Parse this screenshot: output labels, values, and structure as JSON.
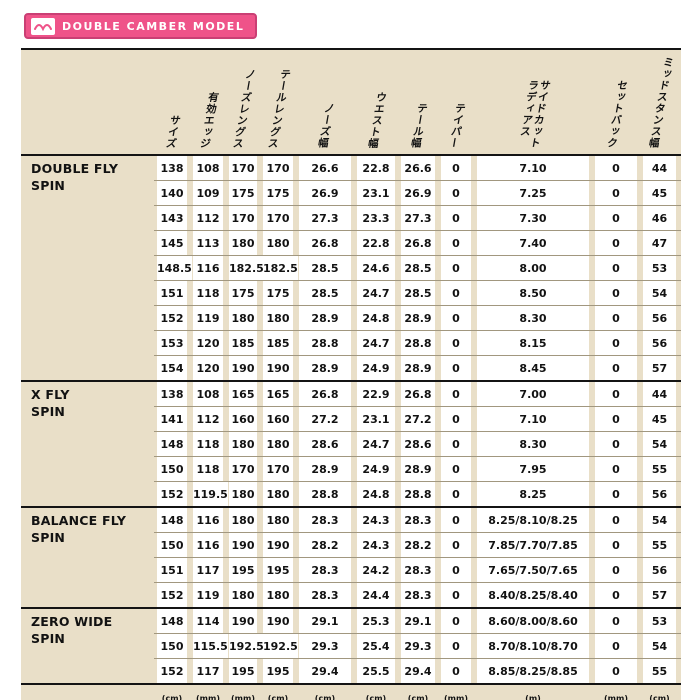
{
  "banner": {
    "title": "DOUBLE CAMBER MODEL"
  },
  "colors": {
    "accent_pink": "#ef5389",
    "accent_pink_dark": "#ca3f74",
    "table_beige": "#e9dfc8",
    "row_line": "#a1977f",
    "text": "#121212"
  },
  "icons": {
    "banner_icon": "double-camber-wave-icon"
  },
  "table": {
    "headers": [
      "サイズ",
      "有効エッジ",
      "ノーズレングス",
      "テールレングス",
      "ノーズ幅",
      "ウエスト幅",
      "テール幅",
      "テイパー",
      "サイドカット\nラディアス",
      "セットバック",
      "ミッドスタンス幅"
    ],
    "units": [
      "(cm)",
      "(mm)",
      "(mm)",
      "(cm)",
      "(cm)",
      "(cm)",
      "(cm)",
      "(mm)",
      "(m)",
      "(mm)",
      "(cm)"
    ],
    "groups": [
      {
        "model": "DOUBLE FLY\nSPIN",
        "rows": [
          [
            "138",
            "108",
            "170",
            "170",
            "26.6",
            "22.8",
            "26.6",
            "0",
            "7.10",
            "0",
            "44"
          ],
          [
            "140",
            "109",
            "175",
            "175",
            "26.9",
            "23.1",
            "26.9",
            "0",
            "7.25",
            "0",
            "45"
          ],
          [
            "143",
            "112",
            "170",
            "170",
            "27.3",
            "23.3",
            "27.3",
            "0",
            "7.30",
            "0",
            "46"
          ],
          [
            "145",
            "113",
            "180",
            "180",
            "26.8",
            "22.8",
            "26.8",
            "0",
            "7.40",
            "0",
            "47"
          ],
          [
            "148.5",
            "116",
            "182.5",
            "182.5",
            "28.5",
            "24.6",
            "28.5",
            "0",
            "8.00",
            "0",
            "53"
          ],
          [
            "151",
            "118",
            "175",
            "175",
            "28.5",
            "24.7",
            "28.5",
            "0",
            "8.50",
            "0",
            "54"
          ],
          [
            "152",
            "119",
            "180",
            "180",
            "28.9",
            "24.8",
            "28.9",
            "0",
            "8.30",
            "0",
            "56"
          ],
          [
            "153",
            "120",
            "185",
            "185",
            "28.8",
            "24.7",
            "28.8",
            "0",
            "8.15",
            "0",
            "56"
          ],
          [
            "154",
            "120",
            "190",
            "190",
            "28.9",
            "24.9",
            "28.9",
            "0",
            "8.45",
            "0",
            "57"
          ]
        ]
      },
      {
        "model": "X FLY\nSPIN",
        "rows": [
          [
            "138",
            "108",
            "165",
            "165",
            "26.8",
            "22.9",
            "26.8",
            "0",
            "7.00",
            "0",
            "44"
          ],
          [
            "141",
            "112",
            "160",
            "160",
            "27.2",
            "23.1",
            "27.2",
            "0",
            "7.10",
            "0",
            "45"
          ],
          [
            "148",
            "118",
            "180",
            "180",
            "28.6",
            "24.7",
            "28.6",
            "0",
            "8.30",
            "0",
            "54"
          ],
          [
            "150",
            "118",
            "170",
            "170",
            "28.9",
            "24.9",
            "28.9",
            "0",
            "7.95",
            "0",
            "55"
          ],
          [
            "152",
            "119.5",
            "180",
            "180",
            "28.8",
            "24.8",
            "28.8",
            "0",
            "8.25",
            "0",
            "56"
          ]
        ]
      },
      {
        "model": "BALANCE FLY\nSPIN",
        "rows": [
          [
            "148",
            "116",
            "180",
            "180",
            "28.3",
            "24.3",
            "28.3",
            "0",
            "8.25/8.10/8.25",
            "0",
            "54"
          ],
          [
            "150",
            "116",
            "190",
            "190",
            "28.2",
            "24.3",
            "28.2",
            "0",
            "7.85/7.70/7.85",
            "0",
            "55"
          ],
          [
            "151",
            "117",
            "195",
            "195",
            "28.3",
            "24.2",
            "28.3",
            "0",
            "7.65/7.50/7.65",
            "0",
            "56"
          ],
          [
            "152",
            "119",
            "180",
            "180",
            "28.3",
            "24.4",
            "28.3",
            "0",
            "8.40/8.25/8.40",
            "0",
            "57"
          ]
        ]
      },
      {
        "model": "ZERO WIDE\nSPIN",
        "rows": [
          [
            "148",
            "114",
            "190",
            "190",
            "29.1",
            "25.3",
            "29.1",
            "0",
            "8.60/8.00/8.60",
            "0",
            "53"
          ],
          [
            "150",
            "115.5",
            "192.5",
            "192.5",
            "29.3",
            "25.4",
            "29.3",
            "0",
            "8.70/8.10/8.70",
            "0",
            "54"
          ],
          [
            "152",
            "117",
            "195",
            "195",
            "29.4",
            "25.5",
            "29.4",
            "0",
            "8.85/8.25/8.85",
            "0",
            "55"
          ]
        ]
      }
    ]
  }
}
